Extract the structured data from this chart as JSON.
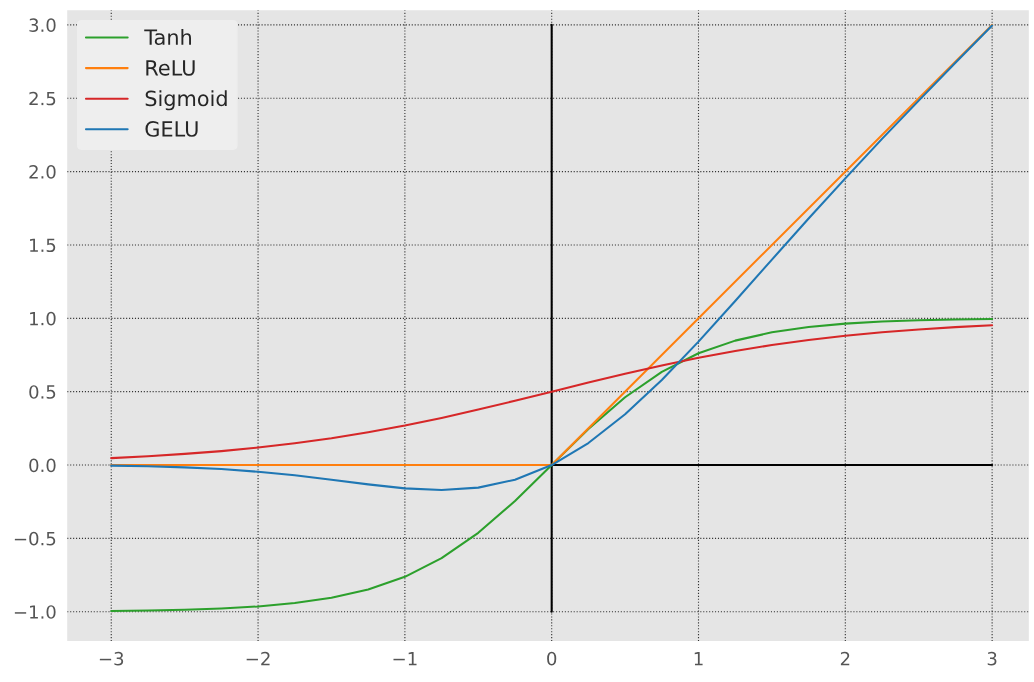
{
  "chart_data": {
    "type": "line",
    "x": [
      -3,
      -2.75,
      -2.5,
      -2.25,
      -2,
      -1.75,
      -1.5,
      -1.25,
      -1,
      -0.75,
      -0.5,
      -0.25,
      0,
      0.25,
      0.5,
      0.75,
      1,
      1.25,
      1.5,
      1.75,
      2,
      2.25,
      2.5,
      2.75,
      3
    ],
    "series": [
      {
        "x": [
          0,
          0
        ],
        "values": [
          -1,
          3
        ],
        "color": "#000000"
      },
      {
        "x": [
          0,
          3
        ],
        "values": [
          0,
          0
        ],
        "color": "#000000"
      },
      {
        "name": "Tanh",
        "color": "#2ca02c",
        "values": [
          -0.995,
          -0.992,
          -0.987,
          -0.978,
          -0.964,
          -0.941,
          -0.905,
          -0.848,
          -0.762,
          -0.635,
          -0.462,
          -0.245,
          0,
          0.245,
          0.462,
          0.635,
          0.762,
          0.848,
          0.905,
          0.941,
          0.964,
          0.978,
          0.987,
          0.992,
          0.995
        ]
      },
      {
        "name": "ReLU",
        "color": "#ff7f0e",
        "x": [
          -3,
          0,
          3
        ],
        "values": [
          0,
          0,
          3
        ]
      },
      {
        "name": "Sigmoid",
        "color": "#d62728",
        "values": [
          0.047,
          0.06,
          0.076,
          0.095,
          0.119,
          0.148,
          0.182,
          0.223,
          0.269,
          0.321,
          0.378,
          0.438,
          0.5,
          0.562,
          0.622,
          0.679,
          0.731,
          0.777,
          0.818,
          0.852,
          0.881,
          0.905,
          0.924,
          0.94,
          0.953
        ]
      },
      {
        "name": "GELU",
        "color": "#1f77b4",
        "values": [
          -0.004,
          -0.008,
          -0.016,
          -0.027,
          -0.046,
          -0.07,
          -0.1,
          -0.132,
          -0.159,
          -0.17,
          -0.154,
          -0.1,
          0,
          0.15,
          0.346,
          0.58,
          0.841,
          1.118,
          1.4,
          1.68,
          1.954,
          2.223,
          2.484,
          2.742,
          2.996
        ]
      }
    ],
    "xlim": [
      -3.3,
      3.25
    ],
    "ylim": [
      -1.2,
      3.1
    ],
    "xticks": [
      {
        "value": -3,
        "label": "−3"
      },
      {
        "value": -2,
        "label": "−2"
      },
      {
        "value": -1,
        "label": "−1"
      },
      0,
      1,
      2,
      3
    ],
    "yticks": [
      {
        "value": -1.0,
        "label": "−1.0"
      },
      {
        "value": -0.5,
        "label": "−0.5"
      },
      {
        "value": 0.0,
        "label": "0.0"
      },
      {
        "value": 0.5,
        "label": "0.5"
      },
      {
        "value": 1.0,
        "label": "1.0"
      },
      {
        "value": 1.5,
        "label": "1.5"
      },
      {
        "value": 2.0,
        "label": "2.0"
      },
      {
        "value": 2.5,
        "label": "2.5"
      },
      {
        "value": 3.0,
        "label": "3.0"
      }
    ],
    "grid": true,
    "legend": "top left",
    "line_style": "solid"
  }
}
